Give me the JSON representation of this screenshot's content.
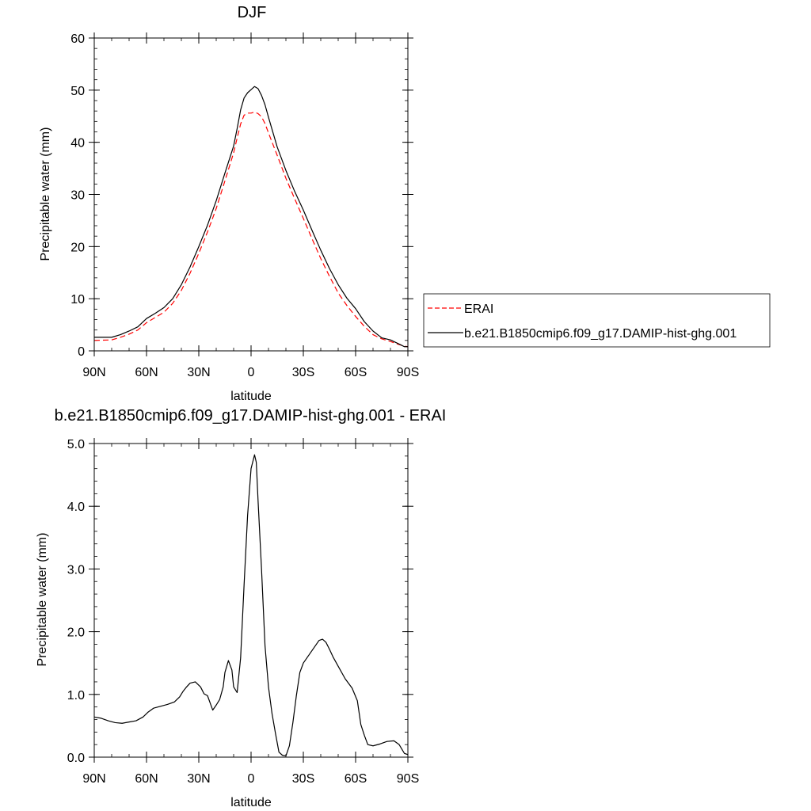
{
  "chart_data": [
    {
      "type": "line",
      "title": "DJF",
      "xlabel": "latitude",
      "ylabel": "Precipitable water (mm)",
      "xlim": [
        90,
        -90
      ],
      "ylim": [
        0,
        60
      ],
      "x_ticks": [
        90,
        60,
        30,
        0,
        -30,
        -60,
        -90
      ],
      "x_tick_labels": [
        "90N",
        "60N",
        "30N",
        "0",
        "30S",
        "60S",
        "90S"
      ],
      "y_ticks": [
        0,
        10,
        20,
        30,
        40,
        50,
        60
      ],
      "y_tick_labels": [
        "0",
        "10",
        "20",
        "30",
        "40",
        "50",
        "60"
      ],
      "grid": false,
      "legend_position": "right",
      "series": [
        {
          "name": "ERAI",
          "color": "#ff0000",
          "dash": "dashed",
          "x": [
            90,
            80,
            75,
            70,
            65,
            60,
            55,
            50,
            45,
            40,
            35,
            30,
            25,
            20,
            15,
            10,
            8,
            6,
            4,
            2,
            0,
            -2,
            -4,
            -6,
            -8,
            -10,
            -15,
            -20,
            -25,
            -30,
            -35,
            -40,
            -45,
            -50,
            -55,
            -60,
            -65,
            -70,
            -75,
            -80,
            -85,
            -88,
            -90
          ],
          "values": [
            2.0,
            2.1,
            2.6,
            3.2,
            4.0,
            5.4,
            6.4,
            7.4,
            9.1,
            11.6,
            14.9,
            18.7,
            22.8,
            27.3,
            32.6,
            38.0,
            40.8,
            43.5,
            45.2,
            45.6,
            45.6,
            45.8,
            45.5,
            44.9,
            43.6,
            41.8,
            37.5,
            33.1,
            29.2,
            25.4,
            21.5,
            17.7,
            14.3,
            11.1,
            8.7,
            6.6,
            4.7,
            3.1,
            2.3,
            1.8,
            1.2,
            0.9,
            0.8
          ]
        },
        {
          "name": "b.e21.B1850cmip6.f09_g17.DAMIP-hist-ghg.001",
          "color": "#000000",
          "dash": "solid",
          "x": [
            90,
            80,
            75,
            70,
            65,
            60,
            55,
            50,
            45,
            40,
            35,
            30,
            25,
            20,
            15,
            10,
            8,
            6,
            4,
            2,
            0,
            -2,
            -4,
            -6,
            -8,
            -10,
            -15,
            -20,
            -25,
            -30,
            -35,
            -40,
            -45,
            -50,
            -55,
            -60,
            -65,
            -70,
            -75,
            -80,
            -85,
            -88,
            -90
          ],
          "values": [
            2.6,
            2.6,
            3.1,
            3.8,
            4.6,
            6.2,
            7.2,
            8.3,
            10.0,
            12.7,
            16.1,
            20.0,
            24.1,
            28.8,
            34.1,
            39.3,
            42.6,
            46.2,
            48.5,
            49.5,
            50.1,
            50.7,
            50.3,
            49.0,
            47.2,
            44.8,
            39.1,
            34.6,
            30.6,
            27.0,
            23.1,
            19.3,
            15.8,
            12.7,
            10.1,
            8.1,
            5.6,
            3.8,
            2.5,
            2.1,
            1.3,
            0.8,
            0.8
          ]
        }
      ]
    },
    {
      "type": "line",
      "title": "b.e21.B1850cmip6.f09_g17.DAMIP-hist-ghg.001 - ERAI",
      "xlabel": "latitude",
      "ylabel": "Precipitable water (mm)",
      "xlim": [
        90,
        -90
      ],
      "ylim": [
        0,
        5
      ],
      "x_ticks": [
        90,
        60,
        30,
        0,
        -30,
        -60,
        -90
      ],
      "x_tick_labels": [
        "90N",
        "60N",
        "30N",
        "0",
        "30S",
        "60S",
        "90S"
      ],
      "y_ticks": [
        0,
        1,
        2,
        3,
        4,
        5
      ],
      "y_tick_labels": [
        "0.0",
        "1.0",
        "2.0",
        "3.0",
        "4.0",
        "5.0"
      ],
      "grid": false,
      "series": [
        {
          "color": "#000000",
          "dash": "solid",
          "x": [
            90,
            86,
            82,
            78,
            74,
            70,
            66,
            62,
            59,
            56,
            52,
            48,
            44,
            41,
            39,
            37,
            35,
            32,
            29,
            27,
            25,
            22,
            20,
            18,
            16,
            15,
            13,
            11,
            10,
            8,
            6,
            4,
            2,
            0,
            -2,
            -3,
            -4,
            -6,
            -8,
            -10,
            -12,
            -14,
            -16,
            -18,
            -20,
            -22,
            -24,
            -26,
            -28,
            -30,
            -33,
            -36,
            -39,
            -41,
            -43,
            -45,
            -47,
            -50,
            -54,
            -58,
            -61,
            -63,
            -65,
            -67,
            -70,
            -74,
            -78,
            -82,
            -85,
            -88,
            -90
          ],
          "values": [
            0.64,
            0.62,
            0.58,
            0.55,
            0.54,
            0.56,
            0.58,
            0.64,
            0.72,
            0.78,
            0.81,
            0.84,
            0.88,
            0.96,
            1.05,
            1.12,
            1.18,
            1.2,
            1.12,
            1.01,
            0.98,
            0.75,
            0.83,
            0.92,
            1.12,
            1.35,
            1.54,
            1.39,
            1.12,
            1.03,
            1.58,
            2.75,
            3.85,
            4.6,
            4.82,
            4.7,
            4.1,
            3.0,
            1.78,
            1.12,
            0.7,
            0.38,
            0.08,
            0.03,
            0.02,
            0.18,
            0.55,
            0.98,
            1.35,
            1.5,
            1.62,
            1.74,
            1.86,
            1.88,
            1.83,
            1.72,
            1.6,
            1.45,
            1.25,
            1.1,
            0.9,
            0.52,
            0.35,
            0.2,
            0.18,
            0.21,
            0.25,
            0.26,
            0.2,
            0.06,
            0.04
          ]
        }
      ]
    }
  ]
}
